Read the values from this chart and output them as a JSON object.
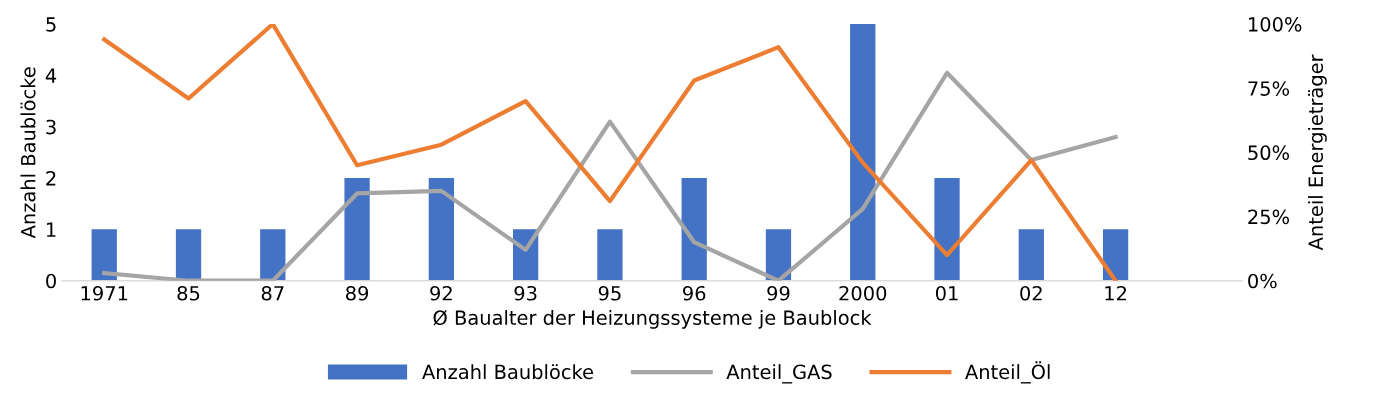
{
  "chart_data": {
    "type": "bar",
    "xlabel": "Ø Baualter der Heizungssysteme je Baublock",
    "ylabel": "Anzahl Baublöcke",
    "y2label": "Anteil Energieträger",
    "categories": [
      "1971",
      "85",
      "87",
      "89",
      "92",
      "93",
      "95",
      "96",
      "99",
      "2000",
      "01",
      "02",
      "12",
      null
    ],
    "series": [
      {
        "name": "Anzahl Baublöcke",
        "color": "#4472c4",
        "values": [
          1,
          1,
          1,
          2,
          2,
          1,
          1,
          2,
          1,
          5,
          2,
          1,
          1,
          null
        ]
      },
      {
        "name": "Anteil_GAS",
        "type": "line",
        "axis": "y2",
        "color": "#a5a5a5",
        "values": [
          3,
          0,
          0,
          34,
          35,
          12,
          62,
          15,
          0,
          28,
          81,
          47,
          56,
          null
        ]
      },
      {
        "name": "Anteil_Öl",
        "type": "line",
        "axis": "y2",
        "color": "#ed7d31",
        "values": [
          94,
          71,
          100,
          45,
          53,
          70,
          31,
          78,
          91,
          46,
          10,
          47,
          0,
          null
        ]
      }
    ],
    "ylim": [
      0,
      5
    ],
    "yticks": [
      0,
      1,
      2,
      3,
      4,
      5
    ],
    "y2lim": [
      0,
      100
    ],
    "y2ticks": [
      {
        "value": 0,
        "label": "0%"
      },
      {
        "value": 25,
        "label": "25%"
      },
      {
        "value": 50,
        "label": "50%"
      },
      {
        "value": 75,
        "label": "75%"
      },
      {
        "value": 100,
        "label": "100%"
      }
    ],
    "grid": false,
    "legend": "bottom",
    "marker": "none",
    "line_style": "solid"
  }
}
